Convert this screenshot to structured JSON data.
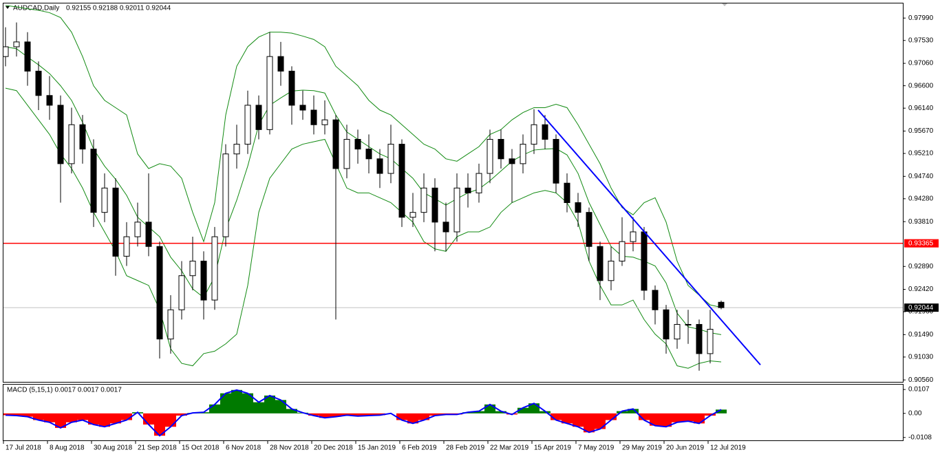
{
  "chart_data": {
    "type": "candlestick",
    "title": "AUDCAD,Daily",
    "subtitle": "0.92155 0.92188 0.92011 0.92044",
    "categories": [
      "17 Jul 2018",
      null,
      null,
      null,
      "8 Aug 2018",
      null,
      null,
      null,
      "30 Aug 2018",
      null,
      null,
      null,
      "21 Sep 2018",
      null,
      null,
      null,
      "15 Oct 2018",
      null,
      null,
      null,
      "6 Nov 2018",
      null,
      null,
      null,
      "28 Nov 2018",
      null,
      null,
      null,
      "20 Dec 2018",
      null,
      null,
      null,
      "15 Jan 2019",
      null,
      null,
      null,
      "6 Feb 2019",
      null,
      null,
      null,
      "28 Feb 2019",
      null,
      null,
      null,
      "22 Mar 2019",
      null,
      null,
      null,
      "15 Apr 2019",
      null,
      null,
      null,
      "7 May 2019",
      null,
      null,
      null,
      "29 May 2019",
      null,
      null,
      null,
      "20 Jun 2019",
      null,
      null,
      null,
      "12 Jul 2019",
      null
    ],
    "open": [
      0.972,
      0.974,
      0.975,
      0.969,
      0.964,
      0.962,
      0.95,
      0.958,
      0.953,
      0.94,
      0.945,
      0.931,
      0.935,
      0.938,
      0.933,
      0.914,
      0.92,
      0.927,
      0.93,
      0.922,
      0.935,
      0.952,
      0.954,
      0.962,
      0.957,
      0.972,
      0.969,
      0.962,
      0.961,
      0.958,
      0.959,
      0.949,
      0.955,
      0.953,
      0.951,
      0.948,
      0.954,
      0.939,
      0.94,
      0.945,
      0.938,
      0.936,
      0.945,
      0.944,
      0.948,
      0.955,
      0.951,
      0.95,
      0.954,
      0.958,
      0.955,
      0.946,
      0.942,
      0.94,
      0.933,
      0.926,
      0.93,
      0.934,
      0.936,
      0.924,
      0.92,
      0.914,
      0.917,
      0.917,
      0.911,
      0.92155
    ],
    "high": [
      0.978,
      0.979,
      0.977,
      0.971,
      0.968,
      0.964,
      0.9615,
      0.96,
      0.955,
      0.948,
      0.947,
      0.938,
      0.942,
      0.948,
      0.934,
      0.923,
      0.93,
      0.935,
      0.932,
      0.937,
      0.954,
      0.958,
      0.965,
      0.964,
      0.977,
      0.975,
      0.97,
      0.965,
      0.964,
      0.963,
      0.96,
      0.958,
      0.957,
      0.956,
      0.953,
      0.958,
      0.955,
      0.944,
      0.948,
      0.947,
      0.942,
      0.948,
      0.948,
      0.95,
      0.957,
      0.957,
      0.953,
      0.956,
      0.9612,
      0.96,
      0.956,
      0.948,
      0.944,
      0.941,
      0.934,
      0.933,
      0.939,
      0.939,
      0.937,
      0.925,
      0.921,
      0.92,
      0.92,
      0.918,
      0.92,
      0.92188
    ],
    "low": [
      0.97,
      0.972,
      0.966,
      0.961,
      0.959,
      0.942,
      0.948,
      0.95,
      0.937,
      0.938,
      0.927,
      0.929,
      0.933,
      0.931,
      0.91,
      0.911,
      0.918,
      0.924,
      0.918,
      0.92,
      0.933,
      0.949,
      0.952,
      0.955,
      0.956,
      0.966,
      0.958,
      0.959,
      0.956,
      0.956,
      0.918,
      0.947,
      0.95,
      0.948,
      0.945,
      0.946,
      0.937,
      0.937,
      0.938,
      0.932,
      0.932,
      0.934,
      0.941,
      0.942,
      0.946,
      0.949,
      0.942,
      0.948,
      0.952,
      0.953,
      0.944,
      0.94,
      0.937,
      0.93,
      0.922,
      0.924,
      0.929,
      0.932,
      0.922,
      0.917,
      0.911,
      0.912,
      0.913,
      0.9075,
      0.909,
      0.92011
    ],
    "close": [
      0.974,
      0.975,
      0.969,
      0.964,
      0.962,
      0.95,
      0.958,
      0.953,
      0.94,
      0.945,
      0.931,
      0.935,
      0.938,
      0.933,
      0.914,
      0.92,
      0.927,
      0.93,
      0.922,
      0.935,
      0.952,
      0.954,
      0.962,
      0.957,
      0.972,
      0.969,
      0.962,
      0.961,
      0.958,
      0.959,
      0.949,
      0.955,
      0.953,
      0.951,
      0.948,
      0.954,
      0.939,
      0.94,
      0.945,
      0.938,
      0.936,
      0.945,
      0.944,
      0.948,
      0.955,
      0.951,
      0.95,
      0.954,
      0.958,
      0.955,
      0.946,
      0.942,
      0.94,
      0.933,
      0.926,
      0.93,
      0.934,
      0.936,
      0.924,
      0.92,
      0.914,
      0.917,
      0.917,
      0.911,
      0.916,
      0.92044
    ],
    "bands": {
      "color": "#118a11",
      "upper": [
        0.9825,
        0.9822,
        0.9818,
        0.9815,
        0.981,
        0.98,
        0.977,
        0.972,
        0.966,
        0.963,
        0.9615,
        0.96,
        0.952,
        0.949,
        0.95,
        0.9495,
        0.947,
        0.94,
        0.934,
        0.942,
        0.96,
        0.97,
        0.974,
        0.976,
        0.977,
        0.977,
        0.9768,
        0.9762,
        0.9755,
        0.974,
        0.97,
        0.968,
        0.966,
        0.963,
        0.961,
        0.96,
        0.958,
        0.956,
        0.954,
        0.953,
        0.951,
        0.9505,
        0.952,
        0.9535,
        0.956,
        0.957,
        0.959,
        0.9605,
        0.9615,
        0.9615,
        0.9622,
        0.9615,
        0.958,
        0.954,
        0.95,
        0.945,
        0.941,
        0.9395,
        0.942,
        0.943,
        0.938,
        0.93,
        0.925,
        0.923,
        0.921,
        0.9205
      ],
      "middle": [
        0.974,
        0.9736,
        0.9719,
        0.9703,
        0.9685,
        0.966,
        0.963,
        0.9585,
        0.953,
        0.9495,
        0.9468,
        0.9435,
        0.939,
        0.937,
        0.935,
        0.9308,
        0.928,
        0.9243,
        0.9225,
        0.9268,
        0.9365,
        0.9425,
        0.9495,
        0.958,
        0.962,
        0.9635,
        0.9649,
        0.9651,
        0.965,
        0.9645,
        0.96,
        0.9565,
        0.955,
        0.9535,
        0.952,
        0.951,
        0.949,
        0.947,
        0.944,
        0.9428,
        0.9415,
        0.9428,
        0.944,
        0.9448,
        0.9465,
        0.9485,
        0.9505,
        0.9518,
        0.9528,
        0.953,
        0.9531,
        0.9518,
        0.948,
        0.942,
        0.9375,
        0.933,
        0.931,
        0.9308,
        0.93,
        0.929,
        0.9255,
        0.9193,
        0.9165,
        0.916,
        0.9153,
        0.9149
      ],
      "lower": [
        0.9655,
        0.965,
        0.962,
        0.959,
        0.956,
        0.952,
        0.949,
        0.945,
        0.94,
        0.936,
        0.932,
        0.927,
        0.926,
        0.925,
        0.92,
        0.912,
        0.909,
        0.9085,
        0.911,
        0.9115,
        0.913,
        0.915,
        0.925,
        0.94,
        0.947,
        0.95,
        0.953,
        0.954,
        0.9545,
        0.955,
        0.95,
        0.945,
        0.944,
        0.944,
        0.943,
        0.942,
        0.94,
        0.938,
        0.934,
        0.9325,
        0.932,
        0.935,
        0.936,
        0.936,
        0.937,
        0.94,
        0.942,
        0.943,
        0.944,
        0.9445,
        0.944,
        0.942,
        0.938,
        0.93,
        0.925,
        0.921,
        0.921,
        0.922,
        0.918,
        0.915,
        0.913,
        0.9085,
        0.908,
        0.909,
        0.9095,
        0.9093
      ]
    },
    "ylim": [
      0.9052,
      0.9829
    ],
    "yticks": [
      {
        "value": 0.9799,
        "label": "0.97990"
      },
      {
        "value": 0.9753,
        "label": "0.97530"
      },
      {
        "value": 0.9706,
        "label": "0.97060"
      },
      {
        "value": 0.966,
        "label": "0.96600"
      },
      {
        "value": 0.9614,
        "label": "0.96140"
      },
      {
        "value": 0.9567,
        "label": "0.95670"
      },
      {
        "value": 0.9521,
        "label": "0.95210"
      },
      {
        "value": 0.9474,
        "label": "0.94740"
      },
      {
        "value": 0.9428,
        "label": "0.94280"
      },
      {
        "value": 0.9381,
        "label": "0.93810"
      },
      {
        "value": 0.9289,
        "label": "0.92890"
      },
      {
        "value": 0.9242,
        "label": "0.92420"
      },
      {
        "value": 0.9196,
        "label": "0.91960"
      },
      {
        "value": 0.9149,
        "label": "0.91490"
      },
      {
        "value": 0.9103,
        "label": "0.91030"
      },
      {
        "value": 0.9056,
        "label": "0.90560"
      }
    ],
    "level": {
      "value": 0.93365,
      "color": "#ff0000"
    },
    "last_price": 0.92044,
    "trendline": {
      "from": 0.961,
      "to": 0.9087,
      "color": "#0000ff"
    },
    "macd": {
      "title": "MACD (5,15,1) 0.0017 0.0017 0.0017",
      "pos_color": "#007a00",
      "neg_color": "#ff0000",
      "line_color": "#0000ff",
      "values": [
        -0.0008,
        -0.001,
        -0.0015,
        -0.003,
        -0.004,
        -0.0065,
        -0.004,
        -0.003,
        -0.005,
        -0.006,
        -0.0045,
        -0.003,
        0.0005,
        -0.005,
        -0.01,
        -0.006,
        -0.001,
        0.0002,
        0.0005,
        0.004,
        0.009,
        0.0105,
        0.009,
        0.005,
        0.008,
        0.006,
        0.002,
        0.0003,
        -0.001,
        -0.002,
        -0.0015,
        -0.0008,
        -0.0012,
        -0.001,
        -0.0008,
        0.0,
        -0.003,
        -0.0045,
        -0.003,
        -0.001,
        -0.0005,
        -0.0005,
        0.0005,
        0.001,
        0.004,
        0.001,
        -0.0005,
        0.0025,
        0.0045,
        0.001,
        -0.003,
        -0.0045,
        -0.006,
        -0.0085,
        -0.007,
        -0.003,
        0.001,
        0.002,
        -0.003,
        -0.0055,
        -0.006,
        -0.004,
        -0.0035,
        -0.0045,
        -0.001,
        0.0017
      ]
    },
    "y2lim": [
      -0.0124,
      0.0132
    ],
    "y2ticks": [
      0.0107,
      {
        "value": 0,
        "label": "0.00"
      },
      -0.0108
    ]
  }
}
